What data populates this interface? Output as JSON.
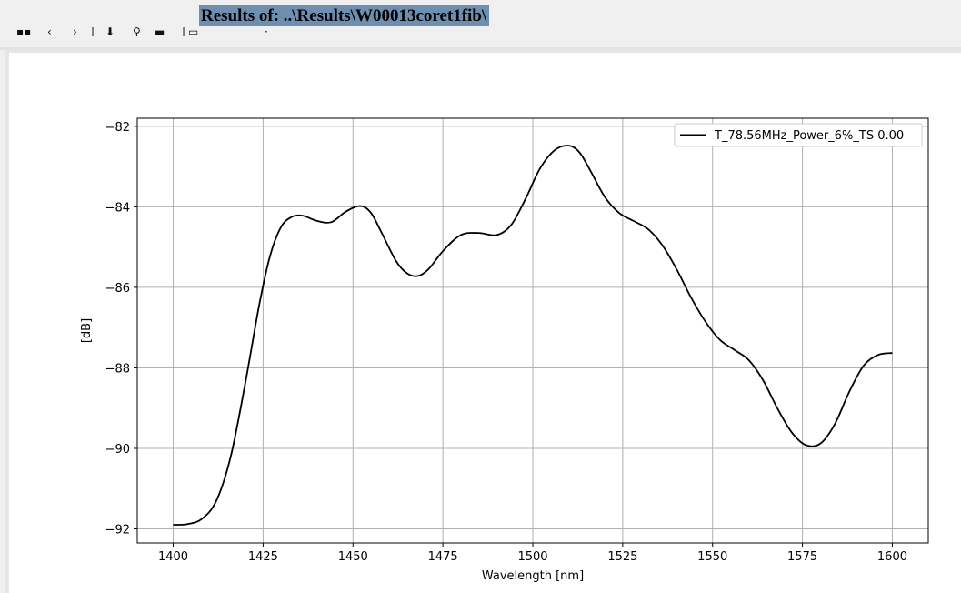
{
  "window": {
    "title": "Results of: ..\\Results\\W00013coret1fib\\"
  },
  "toolbar": {
    "icons": [
      "grid-icon",
      "arrow-icon",
      "arrow-icon",
      "download-icon",
      "zoom-icon",
      "pan-icon",
      "save-icon"
    ]
  },
  "colors": {
    "title_highlight": "#6e8fb0",
    "line": "#000000",
    "grid": "#b0b0b0"
  },
  "chart_data": {
    "type": "line",
    "title": "",
    "xlabel": "Wavelength [nm]",
    "ylabel": "[dB]",
    "xlim": [
      1390,
      1610
    ],
    "ylim": [
      -92.35,
      -81.8
    ],
    "xticks": [
      1400,
      1425,
      1450,
      1475,
      1500,
      1525,
      1550,
      1575,
      1600
    ],
    "yticks": [
      -92,
      -90,
      -88,
      -86,
      -84,
      -82
    ],
    "grid": true,
    "legend_position": "top-right",
    "series": [
      {
        "name": "T_78.56MHz_Power_6%_TS 0.00",
        "color": "#000000",
        "x": [
          1400,
          1404,
          1408,
          1412,
          1416,
          1420,
          1424,
          1427,
          1430,
          1433,
          1436,
          1440,
          1444,
          1448,
          1452,
          1455,
          1458,
          1462,
          1465,
          1468,
          1471,
          1475,
          1480,
          1485,
          1490,
          1494,
          1498,
          1502,
          1506,
          1510,
          1513,
          1516,
          1520,
          1524,
          1528,
          1532,
          1536,
          1540,
          1544,
          1548,
          1552,
          1556,
          1560,
          1564,
          1568,
          1572,
          1576,
          1580,
          1584,
          1588,
          1592,
          1596,
          1600
        ],
        "y": [
          -91.9,
          -91.88,
          -91.75,
          -91.3,
          -90.2,
          -88.4,
          -86.4,
          -85.2,
          -84.5,
          -84.25,
          -84.22,
          -84.35,
          -84.38,
          -84.12,
          -83.98,
          -84.15,
          -84.65,
          -85.35,
          -85.65,
          -85.72,
          -85.55,
          -85.1,
          -84.7,
          -84.65,
          -84.7,
          -84.45,
          -83.8,
          -83.05,
          -82.6,
          -82.48,
          -82.65,
          -83.1,
          -83.75,
          -84.15,
          -84.35,
          -84.55,
          -84.95,
          -85.55,
          -86.25,
          -86.85,
          -87.3,
          -87.55,
          -87.8,
          -88.3,
          -89.0,
          -89.6,
          -89.92,
          -89.88,
          -89.4,
          -88.6,
          -87.95,
          -87.68,
          -87.63
        ]
      }
    ]
  }
}
